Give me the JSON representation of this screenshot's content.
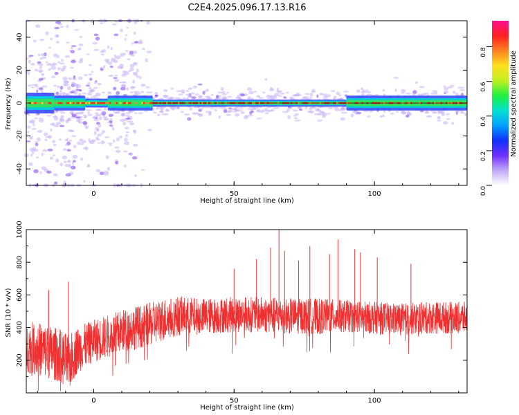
{
  "title": "C2E4.2025.096.17.13.R16",
  "colors": {
    "background": "#ffffff",
    "axis": "#000000",
    "snr_line": "#f03030",
    "track_center": "#e83030",
    "track_edge": "#30e060",
    "track_halo": "#3040ff",
    "speckle": "#c8b0f8"
  },
  "chart_data": [
    {
      "type": "heatmap",
      "name": "spectrogram",
      "xlabel": "Height of straight line (km)",
      "ylabel": "Frequency (Hz)",
      "xlim": [
        -24,
        133
      ],
      "ylim": [
        -50,
        50
      ],
      "xticks": [
        0,
        50,
        100
      ],
      "yticks": [
        -40,
        -20,
        0,
        20,
        40
      ],
      "colorbar": {
        "label": "Normalized spectral amplitude",
        "range": [
          0,
          0.95
        ],
        "ticks": [
          0.0,
          0.2,
          0.4,
          0.6,
          0.8
        ],
        "tick_labels": [
          "0.0",
          "0.2",
          "0.4",
          "0.6",
          "0.8"
        ],
        "colormap": [
          "#ffffff",
          "#c0a8f8",
          "#7030ff",
          "#1030ff",
          "#00a0ff",
          "#00e0d0",
          "#20f040",
          "#c0f020",
          "#ffe020",
          "#ff8020",
          "#ff2020",
          "#ff1090"
        ]
      },
      "track": {
        "center_frequency_hz": 0,
        "segments": [
          {
            "x": [
              -24,
              -14
            ],
            "half_width_hz": 3.5,
            "peak": 0.55
          },
          {
            "x": [
              -14,
              -3
            ],
            "half_width_hz": 2.5,
            "peak": 0.75
          },
          {
            "x": [
              -3,
              5
            ],
            "half_width_hz": 1.5,
            "peak": 0.9
          },
          {
            "x": [
              5,
              21
            ],
            "half_width_hz": 2.5,
            "peak": 0.65
          },
          {
            "x": [
              21,
              90
            ],
            "half_width_hz": 1.2,
            "peak": 0.92
          },
          {
            "x": [
              90,
              133
            ],
            "half_width_hz": 2.5,
            "peak": 0.7
          }
        ]
      }
    },
    {
      "type": "line",
      "name": "snr",
      "xlabel": "Height of straight line (km)",
      "ylabel": "SNR (10 * v/v)",
      "xlim": [
        -24,
        133
      ],
      "ylim": [
        0,
        1000
      ],
      "xticks": [
        0,
        50,
        100
      ],
      "yticks": [
        200,
        400,
        600,
        800,
        1000
      ],
      "series": [
        {
          "x": [
            -24,
            -20,
            -16,
            -12,
            -9,
            -6,
            -2,
            2,
            6,
            10,
            15,
            20,
            25,
            30,
            40,
            50,
            60,
            70,
            80,
            90,
            100,
            110,
            120,
            133
          ],
          "values": [
            280,
            270,
            250,
            230,
            180,
            260,
            300,
            330,
            350,
            380,
            400,
            420,
            450,
            470,
            470,
            480,
            480,
            470,
            470,
            470,
            460,
            450,
            460,
            460
          ],
          "spread": [
            140,
            150,
            150,
            150,
            160,
            130,
            120,
            120,
            120,
            120,
            120,
            120,
            120,
            110,
            100,
            100,
            100,
            100,
            100,
            90,
            90,
            90,
            90,
            90
          ]
        }
      ],
      "spikes": [
        {
          "x": 66,
          "value": 1000
        },
        {
          "x": 87,
          "value": 940
        },
        {
          "x": 77,
          "value": 900
        },
        {
          "x": 63,
          "value": 890
        },
        {
          "x": 93,
          "value": 880
        },
        {
          "x": 68,
          "value": 870
        },
        {
          "x": 95,
          "value": 860
        },
        {
          "x": 84,
          "value": 850
        },
        {
          "x": 101,
          "value": 830
        },
        {
          "x": 58,
          "value": 820
        },
        {
          "x": 73,
          "value": 810
        },
        {
          "x": 113,
          "value": 790
        },
        {
          "x": 50,
          "value": 760
        },
        {
          "x": -9,
          "value": 680
        },
        {
          "x": -16,
          "value": 630
        }
      ]
    }
  ]
}
